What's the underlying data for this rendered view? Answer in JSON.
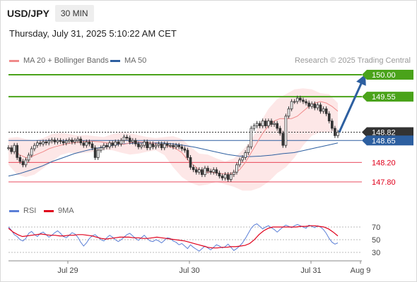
{
  "header": {
    "symbol": "USD/JPY",
    "timeframe": "30 MIN"
  },
  "datetime": "Thursday, July 31, 2025 5:10:22 AM CET",
  "legend": {
    "ma20": {
      "label": "MA 20 + Bollinger Bands",
      "color": "#f08a8a"
    },
    "ma50": {
      "label": "MA 50",
      "color": "#2d5fa0"
    }
  },
  "copyright": "Research © 2025 Trading Central",
  "rsi_legend": {
    "rsi": {
      "label": "RSI",
      "color": "#5b7fd6"
    },
    "ma9": {
      "label": "9MA",
      "color": "#e0001b"
    }
  },
  "chart_data": [
    {
      "type": "candlestick",
      "series_name": "USD/JPY",
      "y_range": [
        147.5,
        150.2
      ],
      "x_labels": [
        "Jul 29",
        "Jul 30",
        "Jul 31",
        "Aug 9"
      ],
      "levels": [
        {
          "value": "150.00",
          "kind": "resistance",
          "color": "#4aa31a"
        },
        {
          "value": "149.55",
          "kind": "resistance",
          "color": "#4aa31a"
        },
        {
          "value": "148.82",
          "kind": "last",
          "color": "#333333"
        },
        {
          "value": "148.65",
          "kind": "pivot",
          "color": "#2d5fa0"
        },
        {
          "value": "148.20",
          "kind": "support",
          "color": "#e0001b"
        },
        {
          "value": "147.80",
          "kind": "support",
          "color": "#e0001b"
        }
      ],
      "projection": {
        "from": 148.82,
        "to": 150.0,
        "color": "#2d5fa0"
      },
      "closes": [
        148.5,
        148.42,
        148.55,
        148.3,
        148.22,
        148.15,
        148.25,
        148.35,
        148.48,
        148.55,
        148.6,
        148.58,
        148.62,
        148.6,
        148.64,
        148.66,
        148.62,
        148.65,
        148.63,
        148.6,
        148.64,
        148.66,
        148.62,
        148.65,
        148.68,
        148.6,
        148.55,
        148.62,
        148.58,
        148.5,
        148.3,
        148.45,
        148.5,
        148.55,
        148.52,
        148.6,
        148.55,
        148.62,
        148.58,
        148.65,
        148.72,
        148.7,
        148.62,
        148.65,
        148.58,
        148.52,
        148.55,
        148.62,
        148.5,
        148.58,
        148.52,
        148.55,
        148.58,
        148.5,
        148.58,
        148.55,
        148.55,
        148.52,
        148.55,
        148.52,
        148.48,
        148.45,
        148.3,
        148.1,
        148.05,
        148.0,
        148.05,
        147.95,
        148.08,
        148.02,
        148.0,
        148.05,
        147.98,
        147.92,
        147.88,
        147.95,
        147.85,
        147.95,
        148.0,
        148.15,
        148.25,
        148.3,
        148.4,
        148.52,
        148.9,
        148.95,
        149.0,
        148.95,
        149.05,
        148.95,
        149.05,
        148.98,
        149.0,
        148.9,
        148.8,
        148.55,
        149.15,
        149.3,
        149.45,
        149.45,
        149.52,
        149.48,
        149.45,
        149.42,
        149.35,
        149.4,
        149.32,
        149.38,
        149.25,
        149.3,
        149.2,
        149.05,
        148.9,
        148.75,
        148.82
      ],
      "ma20": [
        148.5,
        148.45,
        148.35,
        148.3,
        148.32,
        148.37,
        148.42,
        148.48,
        148.52,
        148.55,
        148.58,
        148.6,
        148.61,
        148.63,
        148.64,
        148.63,
        148.62,
        148.6,
        148.6,
        148.58,
        148.57,
        148.6,
        148.62,
        148.62,
        148.6,
        148.6,
        148.57,
        148.55,
        148.52,
        148.48,
        148.4,
        148.25,
        148.15,
        148.05,
        148.0,
        148.0,
        147.98,
        147.97,
        147.97,
        147.98,
        148.05,
        148.2,
        148.4,
        148.6,
        148.8,
        148.95,
        149.05,
        149.1,
        149.1,
        149.1,
        149.15,
        149.25,
        149.35,
        149.42,
        149.45,
        149.42,
        149.35,
        149.25
      ],
      "ma50": [
        147.92,
        147.97,
        148.04,
        148.12,
        148.22,
        148.3,
        148.38,
        148.44,
        148.49,
        148.53,
        148.57,
        148.59,
        148.6,
        148.6,
        148.6,
        148.58,
        148.55,
        148.51,
        148.46,
        148.41,
        148.36,
        148.33,
        148.32,
        148.33,
        148.35,
        148.38,
        148.4,
        148.45,
        148.5,
        148.55,
        148.6
      ],
      "bb_upper": [
        148.7,
        148.72,
        148.68,
        148.65,
        148.7,
        148.78,
        148.82,
        148.78,
        148.75,
        148.76,
        148.74,
        148.72,
        148.78,
        148.82,
        148.8,
        148.76,
        148.72,
        148.7,
        148.72,
        148.74,
        148.68,
        148.52,
        148.38,
        148.36,
        148.28,
        148.22,
        148.28,
        148.45,
        148.65,
        149.0,
        149.3,
        149.5,
        149.6,
        149.7,
        149.72,
        149.7,
        149.62,
        149.6,
        149.42
      ],
      "bb_lower": [
        148.15,
        147.95,
        147.9,
        147.95,
        148.08,
        148.22,
        148.35,
        148.4,
        148.38,
        148.4,
        148.42,
        148.46,
        148.45,
        148.4,
        148.36,
        148.38,
        148.42,
        148.45,
        148.35,
        148.1,
        147.9,
        147.78,
        147.72,
        147.75,
        147.8,
        147.75,
        147.7,
        147.62,
        147.62,
        147.68,
        147.8,
        147.98,
        148.1,
        148.3,
        148.55,
        148.75,
        148.82,
        148.82,
        148.85
      ],
      "visible_price_axis_labels": [
        "150.00",
        "149.55",
        "148.82",
        "148.65",
        "148.20",
        "147.80"
      ]
    },
    {
      "type": "line",
      "title": "RSI",
      "y_ticks": [
        "70",
        "50",
        "30"
      ],
      "y_range": [
        20,
        82
      ],
      "series": [
        {
          "name": "RSI",
          "color": "#5b7fd6",
          "values": [
            70,
            65,
            58,
            55,
            50,
            48,
            52,
            60,
            63,
            58,
            55,
            60,
            62,
            58,
            54,
            57,
            61,
            64,
            60,
            55,
            53,
            57,
            61,
            59,
            54,
            46,
            40,
            45,
            52,
            56,
            58,
            54,
            50,
            48,
            53,
            57,
            54,
            50,
            47,
            50,
            54,
            58,
            60,
            56,
            52,
            49,
            53,
            57,
            52,
            48,
            47,
            50,
            48,
            45,
            49,
            53,
            52,
            48,
            46,
            42,
            44,
            40,
            36,
            42,
            38,
            35,
            32,
            36,
            40,
            37,
            34,
            38,
            42,
            40,
            37,
            39,
            43,
            38,
            33,
            36,
            40,
            45,
            52,
            60,
            68,
            73,
            75,
            71,
            67,
            70,
            72,
            69,
            66,
            62,
            66,
            70,
            73,
            71,
            69,
            72,
            74,
            72,
            70,
            68,
            73,
            71,
            69,
            72,
            70,
            66,
            60,
            52,
            46,
            43,
            45
          ]
        },
        {
          "name": "9MA",
          "color": "#e0001b",
          "values": [
            68,
            62,
            58,
            55,
            56,
            57,
            58,
            59,
            58,
            57,
            57,
            56,
            56,
            57,
            57,
            58,
            58,
            57,
            56,
            54,
            52,
            51,
            52,
            53,
            54,
            54,
            54,
            53,
            53,
            52,
            52,
            53,
            54,
            53,
            52,
            51,
            50,
            49,
            48,
            46,
            44,
            42,
            40,
            38,
            37,
            37,
            38,
            38,
            39,
            39,
            40,
            41,
            44,
            50,
            58,
            64,
            68,
            70,
            70,
            70,
            70,
            70,
            70,
            71,
            71,
            72,
            72,
            71,
            70,
            67,
            62,
            56
          ]
        }
      ]
    }
  ]
}
